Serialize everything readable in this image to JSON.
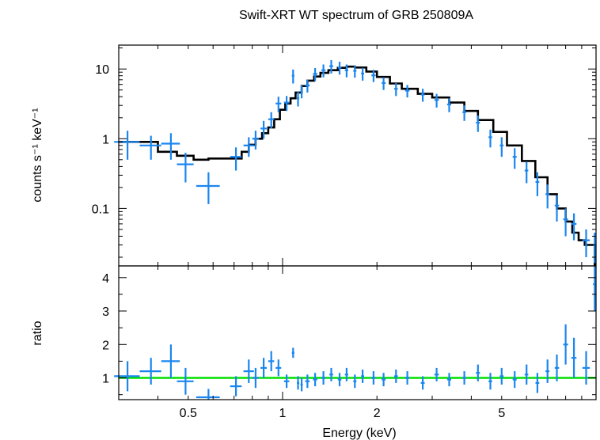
{
  "chart_data": [
    {
      "type": "scatter",
      "title": "Swift-XRT WT spectrum of GRB 250809A",
      "xlabel": "",
      "ylabel": "counts s⁻¹ keV⁻¹",
      "xscale": "log",
      "yscale": "log",
      "xlim": [
        0.3,
        10
      ],
      "ylim": [
        0.015,
        22
      ],
      "yticks": [
        {
          "value": 0.1,
          "label": "0.1"
        },
        {
          "value": 1,
          "label": "1"
        },
        {
          "value": 10,
          "label": "10"
        }
      ],
      "data_color": "#1a86f0",
      "model_color": "#000000",
      "series": [
        {
          "role": "data",
          "x": [
            0.32,
            0.38,
            0.44,
            0.49,
            0.58,
            0.71,
            0.78,
            0.82,
            0.87,
            0.92,
            0.97,
            1.03,
            1.08,
            1.12,
            1.15,
            1.2,
            1.27,
            1.35,
            1.43,
            1.52,
            1.6,
            1.7,
            1.8,
            1.95,
            2.1,
            2.3,
            2.5,
            2.8,
            3.1,
            3.4,
            3.8,
            4.2,
            4.6,
            5.0,
            5.5,
            6.0,
            6.5,
            7.0,
            7.5,
            8.0,
            8.5,
            9.3,
            9.9
          ],
          "y": [
            0.9,
            0.8,
            0.85,
            0.43,
            0.21,
            0.55,
            0.8,
            1.0,
            1.4,
            1.9,
            3.2,
            3.3,
            8.0,
            3.8,
            4.8,
            5.8,
            8.5,
            9.6,
            11.0,
            10.5,
            9.6,
            9.4,
            8.6,
            8.1,
            6.3,
            5.2,
            4.9,
            4.3,
            3.6,
            3.1,
            2.4,
            1.7,
            1.05,
            0.8,
            0.55,
            0.35,
            0.24,
            0.16,
            0.11,
            0.07,
            0.06,
            0.035,
            0.03
          ],
          "xerr": [
            0.03,
            0.03,
            0.03,
            0.03,
            0.05,
            0.03,
            0.03,
            0.02,
            0.02,
            0.02,
            0.02,
            0.02,
            0.01,
            0.01,
            0.01,
            0.02,
            0.02,
            0.02,
            0.02,
            0.02,
            0.02,
            0.02,
            0.02,
            0.03,
            0.03,
            0.03,
            0.04,
            0.04,
            0.05,
            0.05,
            0.05,
            0.06,
            0.06,
            0.07,
            0.08,
            0.08,
            0.09,
            0.1,
            0.12,
            0.14,
            0.16,
            0.25,
            0.12
          ],
          "yerr": [
            0.4,
            0.3,
            0.35,
            0.2,
            0.12,
            0.2,
            0.25,
            0.3,
            0.4,
            0.5,
            0.8,
            0.8,
            1.8,
            0.9,
            1.0,
            1.2,
            1.8,
            2.0,
            2.4,
            2.2,
            2.0,
            1.9,
            1.8,
            1.6,
            1.3,
            1.1,
            1.0,
            0.9,
            0.8,
            0.7,
            0.6,
            0.45,
            0.3,
            0.25,
            0.18,
            0.12,
            0.09,
            0.06,
            0.045,
            0.03,
            0.025,
            0.015,
            0.015
          ]
        },
        {
          "role": "model",
          "x": [
            0.3,
            0.36,
            0.4,
            0.46,
            0.52,
            0.58,
            0.64,
            0.7,
            0.74,
            0.78,
            0.82,
            0.86,
            0.9,
            0.94,
            0.98,
            1.02,
            1.06,
            1.1,
            1.15,
            1.2,
            1.26,
            1.32,
            1.4,
            1.5,
            1.6,
            1.7,
            1.85,
            2.0,
            2.2,
            2.4,
            2.7,
            3.0,
            3.4,
            3.8,
            4.2,
            4.7,
            5.2,
            5.8,
            6.4,
            7.0,
            7.5,
            8.0,
            8.4,
            8.8,
            9.2,
            9.6,
            9.9,
            10.0
          ],
          "y": [
            0.9,
            0.9,
            0.65,
            0.57,
            0.5,
            0.52,
            0.52,
            0.52,
            0.65,
            0.82,
            1.0,
            1.2,
            1.45,
            1.9,
            2.6,
            3.2,
            3.8,
            4.6,
            5.7,
            6.8,
            7.8,
            8.8,
            9.6,
            10.4,
            10.8,
            10.5,
            9.2,
            7.7,
            6.2,
            5.2,
            4.4,
            3.9,
            3.3,
            2.5,
            1.85,
            1.25,
            0.8,
            0.48,
            0.28,
            0.16,
            0.1,
            0.065,
            0.045,
            0.035,
            0.03,
            0.03,
            0.015,
            0.015
          ]
        }
      ]
    },
    {
      "type": "scatter",
      "title": "",
      "xlabel": "Energy (keV)",
      "ylabel": "ratio",
      "xscale": "log",
      "yscale": "linear",
      "xlim": [
        0.3,
        10
      ],
      "ylim": [
        0.35,
        4.35
      ],
      "xticks": [
        {
          "value": 0.5,
          "label": "0.5"
        },
        {
          "value": 1,
          "label": "1"
        },
        {
          "value": 2,
          "label": "2"
        },
        {
          "value": 5,
          "label": "5"
        }
      ],
      "yticks": [
        {
          "value": 1,
          "label": "1"
        },
        {
          "value": 2,
          "label": "2"
        },
        {
          "value": 3,
          "label": "3"
        },
        {
          "value": 4,
          "label": "4"
        }
      ],
      "reference_line": 1,
      "reference_color": "#00e000",
      "data_color": "#1a86f0",
      "series": [
        {
          "role": "ratio",
          "x": [
            0.32,
            0.38,
            0.44,
            0.49,
            0.58,
            0.71,
            0.78,
            0.82,
            0.87,
            0.92,
            0.97,
            1.03,
            1.08,
            1.12,
            1.15,
            1.2,
            1.27,
            1.35,
            1.43,
            1.52,
            1.6,
            1.7,
            1.8,
            1.95,
            2.1,
            2.3,
            2.5,
            2.8,
            3.1,
            3.4,
            3.8,
            4.2,
            4.6,
            5.0,
            5.5,
            6.0,
            6.5,
            7.0,
            7.5,
            8.0,
            8.5,
            9.3,
            9.9
          ],
          "y": [
            1.05,
            1.2,
            1.5,
            0.9,
            0.42,
            0.75,
            1.2,
            1.0,
            1.3,
            1.5,
            1.3,
            0.9,
            1.75,
            0.85,
            0.8,
            0.9,
            0.95,
            1.0,
            1.1,
            0.95,
            1.1,
            0.9,
            1.05,
            1.0,
            0.95,
            1.05,
            1.0,
            0.85,
            1.1,
            0.95,
            1.0,
            1.15,
            0.9,
            1.05,
            0.95,
            1.1,
            0.85,
            1.2,
            1.3,
            2.0,
            1.6,
            1.3,
            3.8
          ],
          "xerr": [
            0.03,
            0.03,
            0.03,
            0.03,
            0.05,
            0.03,
            0.03,
            0.02,
            0.02,
            0.02,
            0.02,
            0.02,
            0.01,
            0.01,
            0.01,
            0.02,
            0.02,
            0.02,
            0.02,
            0.02,
            0.02,
            0.02,
            0.02,
            0.03,
            0.03,
            0.03,
            0.04,
            0.04,
            0.05,
            0.05,
            0.05,
            0.06,
            0.06,
            0.07,
            0.08,
            0.08,
            0.09,
            0.1,
            0.12,
            0.14,
            0.16,
            0.25,
            0.12
          ],
          "yerr": [
            0.45,
            0.4,
            0.5,
            0.4,
            0.25,
            0.3,
            0.35,
            0.3,
            0.3,
            0.3,
            0.25,
            0.2,
            0.15,
            0.2,
            0.2,
            0.2,
            0.2,
            0.2,
            0.2,
            0.2,
            0.2,
            0.2,
            0.2,
            0.2,
            0.2,
            0.2,
            0.2,
            0.2,
            0.2,
            0.2,
            0.2,
            0.25,
            0.25,
            0.25,
            0.25,
            0.3,
            0.3,
            0.35,
            0.4,
            0.6,
            0.6,
            0.5,
            0.8
          ]
        }
      ]
    }
  ]
}
